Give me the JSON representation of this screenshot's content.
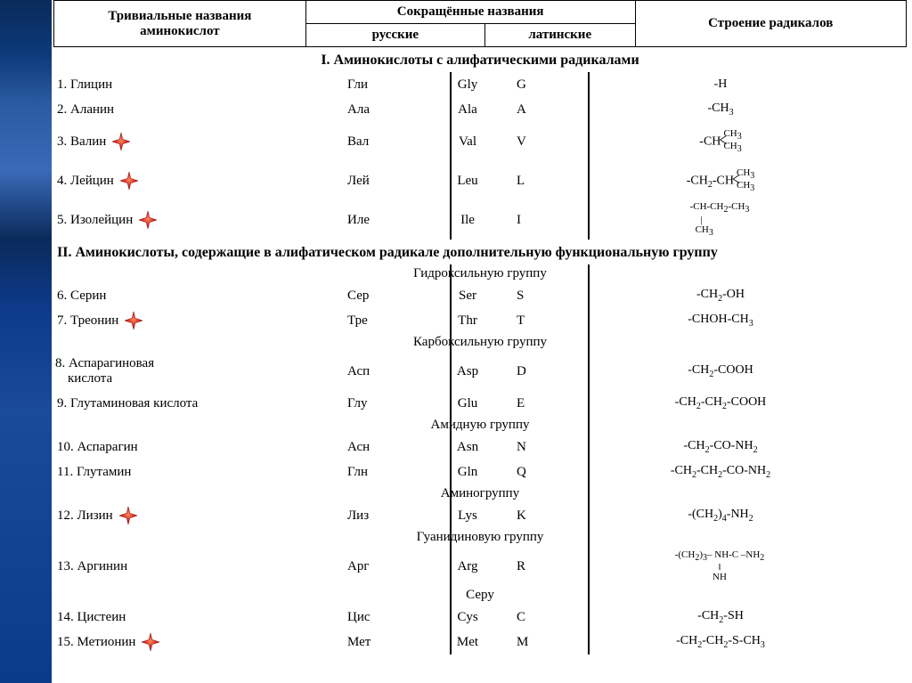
{
  "header": {
    "col1_l1": "Тривиальные названия",
    "col1_l2": "аминокислот",
    "col2": "Сокращённые названия",
    "col2a": "русские",
    "col2b": "латинские",
    "col3": "Строение радикалов"
  },
  "sections": {
    "s1": "I. Аминокислоты с алифатическими радикалами",
    "s2": "II. Аминокислоты, содержащие в алифатическом радикале дополнительную функциональную группу",
    "g_hydroxyl": "Гидроксильную группу",
    "g_carboxyl": "Карбоксильную группу",
    "g_amide": "Амидную группу",
    "g_amino": "Аминогруппу",
    "g_guanidine": "Гуанидиновую группу",
    "g_sulfur": "Серу"
  },
  "rows": [
    {
      "n": "1. Глицин",
      "star": false,
      "ru": "Гли",
      "lat": "Gly",
      "code": "G",
      "rad": "-H",
      "tall": false
    },
    {
      "n": "2. Аланин",
      "star": false,
      "ru": "Ала",
      "lat": "Ala",
      "code": "A",
      "rad": "-CH₃",
      "tall": false
    },
    {
      "n": "3. Валин",
      "star": true,
      "ru": "Вал",
      "lat": "Val",
      "code": "V",
      "rad": "branch_val",
      "tall": true
    },
    {
      "n": "4. Лейцин",
      "star": true,
      "ru": "Лей",
      "lat": "Leu",
      "code": "L",
      "rad": "branch_leu",
      "tall": true
    },
    {
      "n": "5. Изолейцин",
      "star": true,
      "ru": "Иле",
      "lat": "Ile",
      "code": "I",
      "rad": "branch_ile",
      "tall": true
    }
  ],
  "rows_hydroxyl": [
    {
      "n": "6. Серин",
      "star": false,
      "ru": "Сер",
      "lat": "Ser",
      "code": "S",
      "rad": "-CH₂-OH"
    },
    {
      "n": "7. Треонин",
      "star": true,
      "ru": "Тре",
      "lat": "Thr",
      "code": "T",
      "rad": "-CHOH-CH₃"
    }
  ],
  "rows_carboxyl": [
    {
      "n": "8. Аспарагиновая",
      "n2": "кислота",
      "star": false,
      "ru": "Асп",
      "lat": "Asp",
      "code": "D",
      "rad": "-CH₂-COOH",
      "tall": true
    },
    {
      "n": "9. Глутаминовая кислота",
      "star": false,
      "ru": "Глу",
      "lat": "Glu",
      "code": "E",
      "rad": "-CH₂-CH₂-COOH"
    }
  ],
  "rows_amide": [
    {
      "n": "10. Аспарагин",
      "star": false,
      "ru": "Асн",
      "lat": "Asn",
      "code": "N",
      "rad": "-CH₂-CO-NH₂"
    },
    {
      "n": "11. Глутамин",
      "star": false,
      "ru": "Глн",
      "lat": "Gln",
      "code": "Q",
      "rad": "-CH₂-CH₂-CO-NH₂"
    }
  ],
  "rows_amino": [
    {
      "n": "12. Лизин",
      "star": true,
      "ru": "Лиз",
      "lat": "Lys",
      "code": "K",
      "rad": "-(CH₂)₄-NH₂"
    }
  ],
  "rows_guanidine": [
    {
      "n": "13. Аргинин",
      "star": false,
      "ru": "Арг",
      "lat": "Arg",
      "code": "R",
      "rad": "arg",
      "tall": true
    }
  ],
  "rows_sulfur": [
    {
      "n": "14. Цистеин",
      "star": false,
      "ru": "Цис",
      "lat": "Cys",
      "code": "C",
      "rad": "-CH₂-SH"
    },
    {
      "n": "15. Метионин",
      "star": true,
      "ru": "Мет",
      "lat": "Met",
      "code": "M",
      "rad": "-CH₂-CH₂-S-CH₃"
    }
  ],
  "colors": {
    "star_fill": "#d41c1c",
    "star_edge": "#7a0a0a",
    "text": "#000000"
  }
}
